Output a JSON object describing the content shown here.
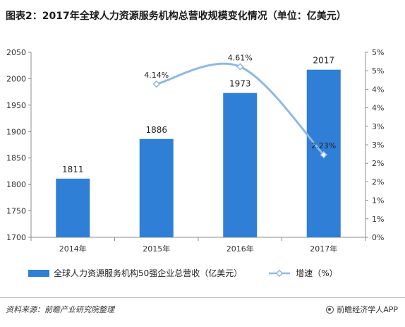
{
  "title": "图表2：2017年全球人力资源服务机构总营收规模变化情况（单位：亿美元）",
  "chart_data": {
    "type": "bar",
    "categories": [
      "2014年",
      "2015年",
      "2016年",
      "2017年"
    ],
    "series": [
      {
        "name": "全球人力资源服务机构50强企业总营收（亿美元）",
        "type": "bar",
        "axis": "left",
        "color": "#2f7fd6",
        "values": [
          1811,
          1886,
          1973,
          2017
        ],
        "labels": [
          "1811",
          "1886",
          "1973",
          "2017"
        ]
      },
      {
        "name": "增速（%）",
        "type": "line",
        "axis": "right",
        "color": "#8fb8e6",
        "values": [
          null,
          4.14,
          4.61,
          2.23
        ],
        "labels": [
          "",
          "4.14%",
          "4.61%",
          "2.23%"
        ]
      }
    ],
    "y_left": {
      "range": [
        1700,
        2050
      ],
      "ticks": [
        1700,
        1750,
        1800,
        1850,
        1900,
        1950,
        2000,
        2050
      ],
      "tick_labels": [
        "1700",
        "1750",
        "1800",
        "1850",
        "1900",
        "1950",
        "2000",
        "2050"
      ]
    },
    "y_right": {
      "range": [
        0,
        5
      ],
      "ticks": [
        0,
        0.5,
        1,
        1.5,
        2,
        2.5,
        3,
        3.5,
        4,
        4.5,
        5
      ],
      "tick_labels": [
        "0%",
        "1%",
        "1%",
        "2%",
        "2%",
        "3%",
        "3%",
        "4%",
        "4%",
        "5%",
        "5%"
      ]
    },
    "grid": false,
    "legend_position": "bottom"
  },
  "footer": {
    "source": "资料来源：前瞻产业研究院整理",
    "brand": "前瞻经济学人APP"
  }
}
